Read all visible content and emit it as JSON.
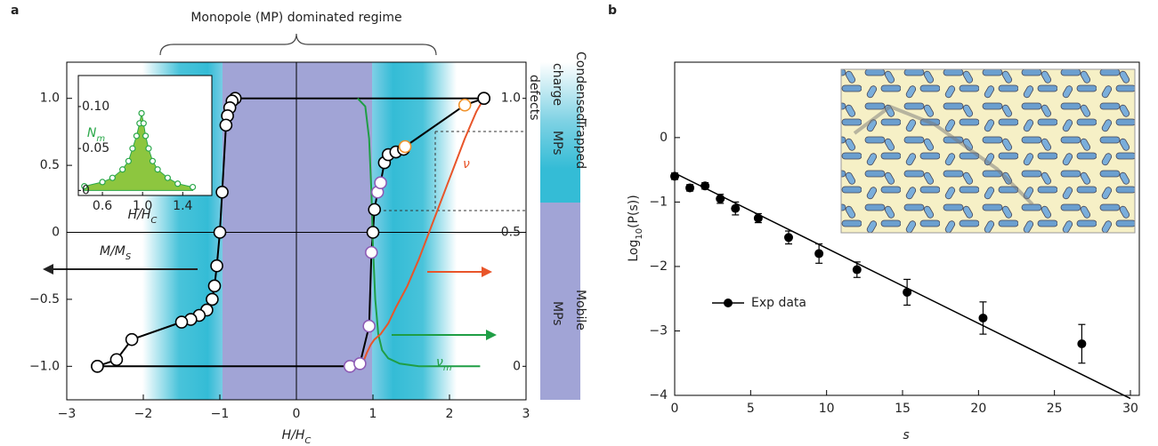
{
  "chart_data": [
    {
      "type": "line",
      "label": "a",
      "annotation": "Monopole (MP) dominated regime",
      "xlabel": {
        "text": "H/H",
        "sub": "C"
      },
      "xlim": [
        -3,
        3
      ],
      "xticks": [
        {
          "value": -3,
          "label": "−3"
        },
        {
          "value": -2,
          "label": "−2"
        },
        {
          "value": -1,
          "label": "−1"
        },
        0,
        1,
        2,
        3
      ],
      "ylim": [
        -1.25,
        1.27
      ],
      "yticks": [
        {
          "value": -1,
          "label": "−1.0"
        },
        {
          "value": -0.5,
          "label": "−0.5"
        },
        0,
        0.5,
        {
          "value": 1,
          "label": "1.0"
        }
      ],
      "y2lim": [
        -0.125,
        1.135
      ],
      "y2ticks": [
        0,
        0.5,
        {
          "value": 1,
          "label": "1.0"
        }
      ],
      "series": [
        {
          "color": "#000000",
          "x": [
            2.45,
            -0.8,
            -0.84,
            -0.87,
            -0.9,
            -0.92,
            -0.97,
            -1.0,
            -1.04,
            -1.07,
            -1.1,
            -1.17,
            -1.27,
            -1.38,
            -1.5,
            -2.15,
            -2.35,
            -2.6
          ],
          "values": [
            1,
            1,
            0.98,
            0.93,
            0.87,
            0.8,
            0.3,
            0,
            -0.25,
            -0.4,
            -0.5,
            -0.58,
            -0.62,
            -0.65,
            -0.67,
            -0.8,
            -0.95,
            -1
          ],
          "marker_colors": [
            "#000000",
            "#000000",
            "#000000",
            "#000000",
            "#000000",
            "#000000",
            "#000000",
            "#000000",
            "#000000",
            "#000000",
            "#000000",
            "#000000",
            "#000000",
            "#000000",
            "#000000",
            "#000000",
            "#000000",
            "#000000"
          ]
        },
        {
          "color": "#000000",
          "x": [
            -2.6,
            0.7,
            0.83,
            0.95,
            0.98,
            1.0,
            1.02,
            1.06,
            1.1,
            1.15,
            1.2,
            1.3,
            1.4,
            1.42,
            2.2,
            2.45
          ],
          "values": [
            -1,
            -1,
            -0.98,
            -0.7,
            -0.15,
            0,
            0.17,
            0.3,
            0.37,
            0.52,
            0.58,
            0.6,
            0.62,
            0.64,
            0.95,
            1
          ],
          "marker_colors": [
            "#000000",
            "#8e5bb5",
            "#8e5bb5",
            "#8e5bb5",
            "#8e5bb5",
            "#000000",
            "#000000",
            "#8e5bb5",
            "#8e5bb5",
            "#000000",
            "#000000",
            "#000000",
            "#000000",
            "#f0912a",
            "#f0912a",
            "#000000"
          ]
        },
        {
          "color": "#1f9e45",
          "axis": "y2",
          "x": [
            0.8,
            0.9,
            0.95,
            0.98,
            1.0,
            1.03,
            1.07,
            1.12,
            1.2,
            1.35,
            1.6,
            2.4
          ],
          "values": [
            1,
            0.97,
            0.85,
            0.65,
            0.45,
            0.25,
            0.12,
            0.06,
            0.03,
            0.01,
            0,
            0
          ]
        },
        {
          "color": "#e8552a",
          "axis": "y2",
          "x": [
            0.85,
            0.92,
            0.97,
            1.02,
            1.1,
            1.2,
            1.3,
            1.45,
            1.6,
            1.8,
            2.0,
            2.2,
            2.35,
            2.45
          ],
          "values": [
            0,
            0.05,
            0.08,
            0.1,
            0.12,
            0.16,
            0.22,
            0.3,
            0.4,
            0.55,
            0.7,
            0.85,
            0.95,
            1
          ]
        }
      ],
      "labels": [
        {
          "text": "M/M",
          "sub": "S",
          "color": "#222222"
        },
        {
          "text": "ν",
          "color": "#e8552a"
        },
        {
          "text": "ν",
          "sub": "m",
          "color": "#1f9e45"
        }
      ],
      "regimes": [
        [
          "Condensed",
          "charge",
          "defects"
        ],
        [
          "Trapped",
          "MPs"
        ],
        [
          "Mobile",
          "MPs"
        ]
      ]
    },
    {
      "type": "area",
      "xlabel": {
        "text": "H/H",
        "sub": "C"
      },
      "ylabel": {
        "text": "N",
        "sub": "m"
      },
      "xlim": [
        0.36,
        1.69
      ],
      "xticks": [
        0.6,
        {
          "value": 1,
          "label": "1.0"
        },
        1.4
      ],
      "ylim": [
        -0.006,
        0.137
      ],
      "yticks": [
        0,
        0.05,
        {
          "value": 0.1,
          "label": "0.10"
        }
      ],
      "color": "#8dc63f",
      "edge": "#2ba84a",
      "x": [
        0.42,
        0.6,
        0.7,
        0.8,
        0.86,
        0.9,
        0.94,
        0.97,
        0.99,
        1.01,
        1.03,
        1.06,
        1.1,
        1.15,
        1.25,
        1.35,
        1.5
      ],
      "values": [
        0.005,
        0.01,
        0.015,
        0.025,
        0.035,
        0.05,
        0.065,
        0.08,
        0.092,
        0.08,
        0.065,
        0.05,
        0.035,
        0.025,
        0.015,
        0.008,
        0.004
      ]
    },
    {
      "type": "errorbar",
      "label": "b",
      "xlabel": {
        "text": "s"
      },
      "ylabel": {
        "text": "Log",
        "sub": "10",
        "suffix": "(P(s))"
      },
      "xlim": [
        0,
        30
      ],
      "xticks": [
        0,
        5,
        10,
        15,
        20,
        25,
        30
      ],
      "ylim": [
        -4,
        1.17
      ],
      "yticks": [
        {
          "value": -4,
          "label": "−4"
        },
        {
          "value": -3,
          "label": "−3"
        },
        {
          "value": -2,
          "label": "−2"
        },
        {
          "value": -1,
          "label": "−1"
        },
        0
      ],
      "series": [
        {
          "name": "Exp data",
          "color": "#000000",
          "x": [
            0,
            1,
            2,
            3,
            4,
            5.5,
            7.5,
            9.5,
            12,
            15.3,
            20.3,
            26.8
          ],
          "values": [
            -0.6,
            -0.78,
            -0.75,
            -0.95,
            -1.1,
            -1.25,
            -1.55,
            -1.8,
            -2.05,
            -2.4,
            -2.8,
            -3.2
          ],
          "errors": [
            0.05,
            0.05,
            0.05,
            0.07,
            0.1,
            0.07,
            0.1,
            0.15,
            0.12,
            0.2,
            0.25,
            0.3
          ]
        }
      ],
      "fit": {
        "x": [
          0,
          30
        ],
        "values": [
          -0.55,
          -4.05
        ],
        "color": "#000000"
      }
    }
  ]
}
